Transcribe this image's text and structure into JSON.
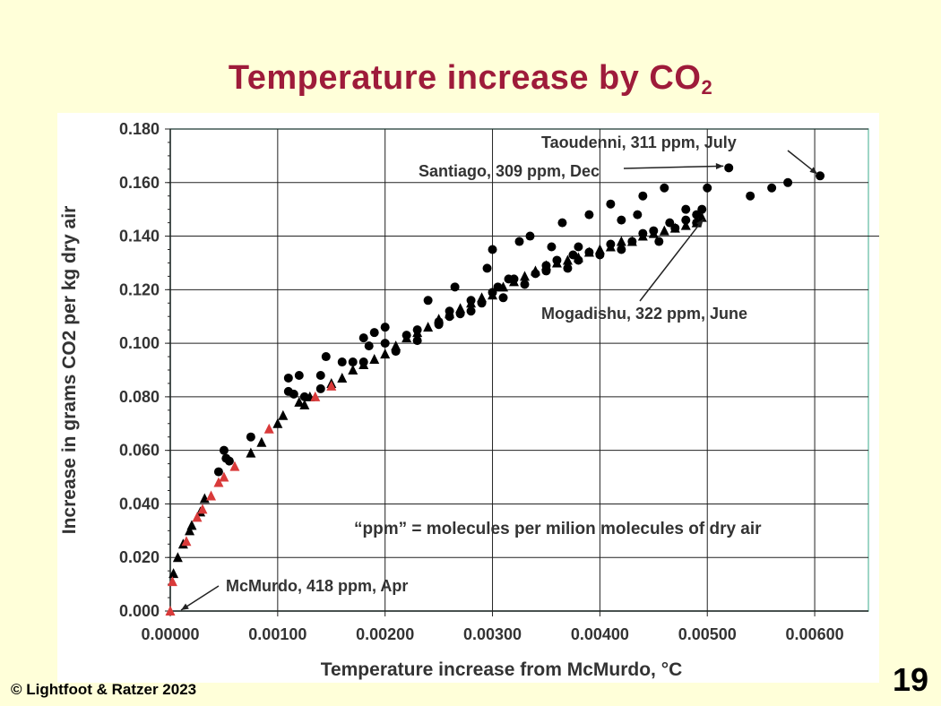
{
  "slide": {
    "title": "Temperature increase by CO",
    "title_subscript": "2",
    "copyright": "© Lightfoot & Ratzer 2023",
    "page_number": "19"
  },
  "chart_data": {
    "type": "scatter",
    "xlabel": "Temperature increase from McMurdo, °C",
    "ylabel": "Increase in grams CO2 per kg dry air",
    "xlim": [
      0,
      0.0065
    ],
    "ylim": [
      0,
      0.18
    ],
    "x_ticks": [
      "0.00000",
      "0.00100",
      "0.00200",
      "0.00300",
      "0.00400",
      "0.00500",
      "0.00600"
    ],
    "y_ticks": [
      "0.000",
      "0.020",
      "0.040",
      "0.060",
      "0.080",
      "0.100",
      "0.120",
      "0.140",
      "0.160",
      "0.180"
    ],
    "grid": true,
    "note": "“ppm” = molecules per milion molecules of dry air",
    "annotations": [
      {
        "text": "Taoudenni, 311 ppm, July",
        "x": 0.00605,
        "y": 0.1625
      },
      {
        "text": "Santiago, 309 ppm, Dec",
        "x": 0.0052,
        "y": 0.1655
      },
      {
        "text": "Mogadishu, 322 ppm, June",
        "x": 0.00498,
        "y": 0.145
      },
      {
        "text": "McMurdo, 418 ppm, Apr",
        "x": 5e-05,
        "y": 0.001
      }
    ],
    "series": [
      {
        "marker": "circle",
        "color": "#000000",
        "points": [
          [
            0.00045,
            0.052
          ],
          [
            0.0005,
            0.06
          ],
          [
            0.00052,
            0.057
          ],
          [
            0.00055,
            0.056
          ],
          [
            0.00075,
            0.065
          ],
          [
            0.0011,
            0.087
          ],
          [
            0.0011,
            0.082
          ],
          [
            0.00115,
            0.081
          ],
          [
            0.0012,
            0.088
          ],
          [
            0.00125,
            0.08
          ],
          [
            0.0014,
            0.088
          ],
          [
            0.0014,
            0.083
          ],
          [
            0.00145,
            0.095
          ],
          [
            0.0016,
            0.093
          ],
          [
            0.0017,
            0.093
          ],
          [
            0.0018,
            0.093
          ],
          [
            0.0018,
            0.102
          ],
          [
            0.00185,
            0.099
          ],
          [
            0.0019,
            0.104
          ],
          [
            0.002,
            0.106
          ],
          [
            0.002,
            0.1
          ],
          [
            0.0021,
            0.097
          ],
          [
            0.0022,
            0.103
          ],
          [
            0.0023,
            0.105
          ],
          [
            0.0023,
            0.101
          ],
          [
            0.0024,
            0.116
          ],
          [
            0.0025,
            0.107
          ],
          [
            0.0025,
            0.108
          ],
          [
            0.0026,
            0.112
          ],
          [
            0.0026,
            0.11
          ],
          [
            0.00265,
            0.121
          ],
          [
            0.0027,
            0.111
          ],
          [
            0.0028,
            0.112
          ],
          [
            0.0028,
            0.116
          ],
          [
            0.0029,
            0.115
          ],
          [
            0.00295,
            0.128
          ],
          [
            0.003,
            0.135
          ],
          [
            0.003,
            0.119
          ],
          [
            0.00305,
            0.121
          ],
          [
            0.0031,
            0.117
          ],
          [
            0.00315,
            0.124
          ],
          [
            0.0032,
            0.124
          ],
          [
            0.00325,
            0.138
          ],
          [
            0.0033,
            0.122
          ],
          [
            0.00335,
            0.14
          ],
          [
            0.0034,
            0.126
          ],
          [
            0.0035,
            0.129
          ],
          [
            0.0035,
            0.127
          ],
          [
            0.00355,
            0.136
          ],
          [
            0.0036,
            0.131
          ],
          [
            0.00365,
            0.145
          ],
          [
            0.0037,
            0.128
          ],
          [
            0.00375,
            0.133
          ],
          [
            0.0038,
            0.131
          ],
          [
            0.0038,
            0.136
          ],
          [
            0.0039,
            0.134
          ],
          [
            0.0039,
            0.148
          ],
          [
            0.004,
            0.133
          ],
          [
            0.0041,
            0.137
          ],
          [
            0.0041,
            0.152
          ],
          [
            0.0042,
            0.135
          ],
          [
            0.0042,
            0.146
          ],
          [
            0.0043,
            0.138
          ],
          [
            0.00435,
            0.148
          ],
          [
            0.0044,
            0.141
          ],
          [
            0.0044,
            0.155
          ],
          [
            0.0045,
            0.142
          ],
          [
            0.00455,
            0.138
          ],
          [
            0.0046,
            0.158
          ],
          [
            0.00465,
            0.145
          ],
          [
            0.0047,
            0.143
          ],
          [
            0.0048,
            0.15
          ],
          [
            0.0048,
            0.146
          ],
          [
            0.0049,
            0.148
          ],
          [
            0.0049,
            0.145
          ],
          [
            0.00495,
            0.15
          ],
          [
            0.005,
            0.158
          ],
          [
            0.0052,
            0.1655
          ],
          [
            0.0054,
            0.155
          ],
          [
            0.0056,
            0.158
          ],
          [
            0.00575,
            0.16
          ],
          [
            0.00605,
            0.1625
          ]
        ]
      },
      {
        "marker": "triangle",
        "color": "#000000",
        "points": [
          [
            3e-05,
            0.014
          ],
          [
            7e-05,
            0.02
          ],
          [
            0.00012,
            0.025
          ],
          [
            0.00018,
            0.03
          ],
          [
            0.0002,
            0.032
          ],
          [
            0.00028,
            0.037
          ],
          [
            0.00032,
            0.042
          ],
          [
            0.00075,
            0.059
          ],
          [
            0.00085,
            0.063
          ],
          [
            0.001,
            0.07
          ],
          [
            0.00105,
            0.073
          ],
          [
            0.0012,
            0.078
          ],
          [
            0.00125,
            0.077
          ],
          [
            0.0013,
            0.08
          ],
          [
            0.0015,
            0.085
          ],
          [
            0.0016,
            0.087
          ],
          [
            0.0017,
            0.09
          ],
          [
            0.0018,
            0.092
          ],
          [
            0.0019,
            0.094
          ],
          [
            0.002,
            0.096
          ],
          [
            0.0021,
            0.099
          ],
          [
            0.0022,
            0.102
          ],
          [
            0.0023,
            0.104
          ],
          [
            0.0024,
            0.106
          ],
          [
            0.0025,
            0.109
          ],
          [
            0.0026,
            0.111
          ],
          [
            0.0027,
            0.113
          ],
          [
            0.0028,
            0.115
          ],
          [
            0.0029,
            0.117
          ],
          [
            0.003,
            0.118
          ],
          [
            0.0031,
            0.121
          ],
          [
            0.0032,
            0.123
          ],
          [
            0.0033,
            0.125
          ],
          [
            0.0034,
            0.127
          ],
          [
            0.0035,
            0.129
          ],
          [
            0.0036,
            0.13
          ],
          [
            0.0037,
            0.131
          ],
          [
            0.0038,
            0.132
          ],
          [
            0.0039,
            0.134
          ],
          [
            0.004,
            0.135
          ],
          [
            0.0041,
            0.136
          ],
          [
            0.0042,
            0.138
          ],
          [
            0.0043,
            0.138
          ],
          [
            0.0044,
            0.14
          ],
          [
            0.0045,
            0.141
          ],
          [
            0.0046,
            0.142
          ],
          [
            0.0047,
            0.143
          ],
          [
            0.0048,
            0.144
          ],
          [
            0.0049,
            0.145
          ],
          [
            0.00495,
            0.147
          ]
        ]
      },
      {
        "marker": "triangle",
        "color": "#d93a3a",
        "points": [
          [
            0.0,
            0.0
          ],
          [
            2e-05,
            0.011
          ],
          [
            0.00015,
            0.026
          ],
          [
            0.00025,
            0.035
          ],
          [
            0.0003,
            0.038
          ],
          [
            0.00038,
            0.043
          ],
          [
            0.00045,
            0.048
          ],
          [
            0.0005,
            0.05
          ],
          [
            0.0006,
            0.054
          ],
          [
            0.00092,
            0.068
          ],
          [
            0.00135,
            0.08
          ],
          [
            0.0015,
            0.084
          ]
        ]
      }
    ]
  }
}
